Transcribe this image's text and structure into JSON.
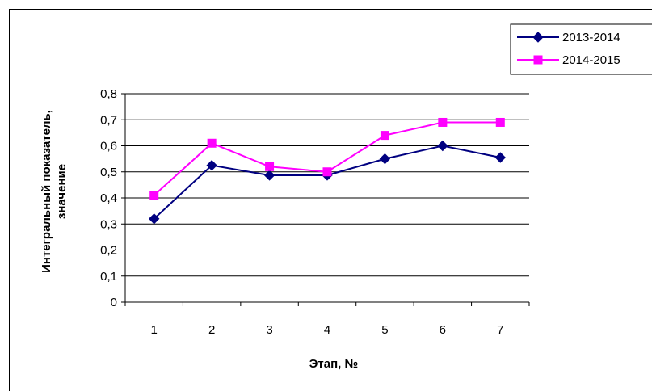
{
  "chart_data": {
    "type": "line",
    "title": "",
    "xlabel": "Этап, №",
    "ylabel_line1": "Интегральный показатель,",
    "ylabel_line2": "значение",
    "categories": [
      "1",
      "2",
      "3",
      "4",
      "5",
      "6",
      "7"
    ],
    "ylim": [
      0,
      0.8
    ],
    "yticks": [
      "0",
      "0,1",
      "0,2",
      "0,3",
      "0,4",
      "0,5",
      "0,6",
      "0,7",
      "0,8"
    ],
    "grid": true,
    "legend_position": "top-right",
    "series": [
      {
        "name": "2013-2014",
        "color": "#000080",
        "marker": "diamond",
        "values": [
          0.32,
          0.525,
          0.487,
          0.487,
          0.55,
          0.6,
          0.555
        ]
      },
      {
        "name": "2014-2015",
        "color": "#ff00ff",
        "marker": "square",
        "values": [
          0.41,
          0.61,
          0.52,
          0.5,
          0.64,
          0.69,
          0.69
        ]
      }
    ]
  }
}
